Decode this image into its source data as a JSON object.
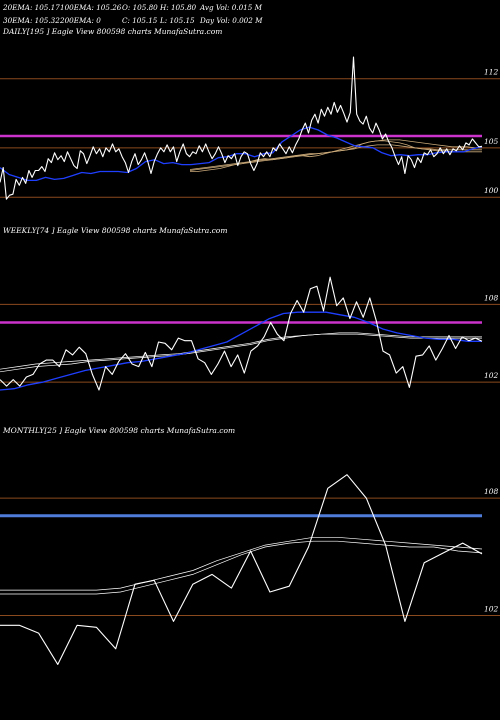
{
  "header": {
    "ema20": "20EMA: 105.17",
    "ema100": "100EMA: 105.26",
    "open": "O: 105.80",
    "high": "H: 105.80",
    "avg_vol": "Avg Vol: 0.015 M",
    "ema30": "30EMA: 105.32",
    "ema200": "200EMA: 0",
    "close": "C: 105.15",
    "low": "L: 105.15",
    "day_vol": "Day Vol: 0.002 M"
  },
  "colors": {
    "price": "#ffffff",
    "ema_blue": "#1f3fff",
    "band_magenta": "#cc33cc",
    "band_blue": "#4f7bd9",
    "grid_brown": "#8b4a1e",
    "ma_tan": "#c8a878"
  },
  "chart_data": [
    {
      "type": "line",
      "title": "DAILY[195 ] Eagle View 800598 charts MunafaSutra.com",
      "yticks": [
        112,
        105,
        100
      ],
      "ylim": [
        98.5,
        114.5
      ],
      "band_level": 106.2,
      "series": [
        {
          "values": [
            101.5,
            103,
            99.8,
            100.2,
            100.3,
            101.8,
            101.2,
            102,
            101.4,
            102.7,
            102,
            102.7,
            102.7,
            103.1,
            102.6,
            103.9,
            103.5,
            104.5,
            103.8,
            104.2,
            103.6,
            104.6,
            103.9,
            103.2,
            102.9,
            104.7,
            104.4,
            103.4,
            104.2,
            105.1,
            104.4,
            104.9,
            104.1,
            105,
            104.6,
            105.4,
            104.6,
            104.9,
            104.1,
            103.5,
            102.5,
            103.6,
            104.4,
            103.3,
            103.8,
            104.5,
            103.6,
            102.4,
            103.6,
            104.4,
            105,
            104.6,
            105.3,
            104.6,
            105.1,
            103.6,
            104.6,
            105.4,
            104.4,
            104.1,
            104.6,
            104.4,
            105.2,
            104.6,
            105.4,
            104.6,
            103.9,
            104.4,
            105.1,
            104.4,
            103.5,
            104.2,
            103.9,
            104.4,
            103.2,
            104.1,
            104.6,
            104.4,
            103.4,
            102.7,
            103.4,
            104.5,
            104.1,
            104.6,
            104.1,
            105,
            104.7,
            105.4,
            104.9,
            104.4,
            105.1,
            104.5,
            105.3,
            105.9,
            106.8,
            107.5,
            106.5,
            107.8,
            108.4,
            107.5,
            108.9,
            108.2,
            109.1,
            108.4,
            109.6,
            108.6,
            109.3,
            108.5,
            107.6,
            108.6,
            114.2,
            108.4,
            107.7,
            107.4,
            108.2,
            107,
            106.5,
            107.5,
            106.8,
            105.9,
            106.4,
            105.6,
            105,
            104.1,
            103.3,
            104.1,
            102.4,
            104.2,
            103.8,
            103,
            104,
            103.5,
            104.5,
            104.3,
            104.8,
            104.1,
            104.4,
            105,
            104.4,
            104.9,
            104.3,
            104.9,
            104.7,
            105.2,
            104.8,
            105.5,
            105.3,
            105.9,
            105.5,
            105.1,
            105.15
          ]
        },
        {
          "values": [
            103,
            102.3,
            102,
            101.7,
            101.7,
            102,
            101.8,
            101.9,
            102.2,
            102.5,
            102.4,
            102.6,
            102.6,
            102.6,
            102.5,
            102.9,
            103.6,
            103.8,
            103.4,
            103.5,
            103.3,
            103.3,
            103.4,
            103.5,
            104,
            104.1,
            104.4,
            104.4,
            104.1,
            104.4,
            104.5,
            105.6,
            106.2,
            106.8,
            107.1,
            106.8,
            106.3,
            106,
            105.6,
            105.2,
            105.1,
            105,
            104.5,
            104.2,
            104.3,
            104.2,
            104.3,
            104.3,
            104.5,
            104.6,
            104.6,
            104.6,
            104.9,
            105.1
          ]
        },
        {
          "values": [
            102.6,
            102.6,
            102.7,
            102.8,
            102.9,
            103.1,
            103.3,
            103.4,
            103.6,
            103.8,
            103.9,
            103.8,
            103.9,
            104,
            104.2,
            104.2,
            104.1,
            104.2,
            104.4,
            104.6,
            104.7,
            104.8,
            105,
            105.4,
            105.6,
            105.7,
            105.7,
            105.6,
            105.5,
            105.3,
            105,
            104.9,
            104.8,
            104.7,
            104.7,
            104.6,
            104.6,
            104.6,
            104.6,
            104.6
          ]
        },
        {
          "values": [
            102.8,
            102.9,
            103,
            103.1,
            103.2,
            103.3,
            103.4,
            103.5,
            103.6,
            103.7,
            103.8,
            103.9,
            104,
            104.1,
            104.2,
            104.3,
            104.4,
            104.4,
            104.5,
            104.6,
            104.7,
            104.8,
            104.9,
            105.1,
            105.2,
            105.3,
            105.3,
            105.3,
            105.2,
            105.1,
            105,
            104.9,
            104.9,
            104.8,
            104.8,
            104.8,
            104.8,
            104.8,
            104.8,
            104.8
          ]
        },
        {
          "values": [
            102.7,
            102.8,
            102.9,
            103,
            103.1,
            103.2,
            103.3,
            103.4,
            103.5,
            103.6,
            103.7,
            103.8,
            103.9,
            104,
            104.1,
            104.2,
            104.3,
            104.4,
            104.5,
            104.6,
            104.8,
            105,
            105.2,
            105.4,
            105.6,
            105.7,
            105.8,
            105.8,
            105.8,
            105.7,
            105.6,
            105.5,
            105.4,
            105.3,
            105.2,
            105.1,
            105.1,
            105.1,
            105,
            105
          ]
        }
      ]
    },
    {
      "type": "line",
      "title": "WEEKLY[74 ] Eagle View 800598 charts MunafaSutra.com",
      "yticks": [
        108,
        102
      ],
      "ylim": [
        99.7,
        111.5
      ],
      "band_level": 106.6,
      "series": [
        {
          "values": [
            102.2,
            101.7,
            102.2,
            101.7,
            102.4,
            102.6,
            103.4,
            103.7,
            103.7,
            103.2,
            104.5,
            104.1,
            104.7,
            104.2,
            102.6,
            101.4,
            103.2,
            102.6,
            103.6,
            104.2,
            103.4,
            103.2,
            104.3,
            103.2,
            105.1,
            105,
            104.5,
            105.4,
            105.2,
            105.2,
            103.8,
            103.5,
            102.6,
            103.4,
            104.4,
            103.2,
            104.1,
            102.7,
            104.4,
            104.8,
            105.5,
            106.6,
            105.7,
            105.2,
            107.3,
            108.3,
            107.4,
            109.2,
            109.4,
            107.5,
            110.1,
            107.9,
            108.5,
            106.9,
            108.2,
            107,
            108.5,
            106.7,
            104.4,
            104.1,
            102.7,
            103.2,
            101.6,
            104,
            104.1,
            104.8,
            103.7,
            104.6,
            105.6,
            104.6,
            105.5,
            105.2,
            105.4,
            105.15
          ]
        },
        {
          "values": [
            101.4,
            101.5,
            101.8,
            102,
            102.3,
            102.6,
            102.9,
            103.1,
            103.3,
            103.5,
            103.6,
            103.8,
            104,
            104.2,
            104.5,
            104.8,
            105.1,
            105.7,
            106.3,
            106.9,
            107.3,
            107.4,
            107.4,
            107.4,
            107.2,
            107,
            106.6,
            106.1,
            105.8,
            105.6,
            105.4,
            105.3,
            105.3,
            105.15,
            105.15
          ]
        },
        {
          "values": [
            103,
            103.2,
            103.4,
            103.5,
            103.6,
            103.7,
            103.8,
            103.9,
            104,
            104.1,
            104.2,
            104.4,
            104.6,
            104.8,
            105,
            105.3,
            105.5,
            105.6,
            105.7,
            105.7,
            105.7,
            105.6,
            105.5,
            105.4,
            105.4,
            105.4,
            105.4,
            105.4
          ]
        },
        {
          "values": [
            102.8,
            103,
            103.2,
            103.3,
            103.4,
            103.6,
            103.7,
            103.8,
            103.9,
            104,
            104.1,
            104.3,
            104.5,
            104.7,
            104.9,
            105.2,
            105.4,
            105.6,
            105.7,
            105.8,
            105.8,
            105.7,
            105.6,
            105.5,
            105.5,
            105.5,
            105.5,
            105.5
          ]
        }
      ]
    },
    {
      "type": "line",
      "title": "MONTHLY[25 ] Eagle View 800598 charts MunafaSutra.com",
      "yticks": [
        108,
        102
      ],
      "ylim": [
        98.5,
        110
      ],
      "band_level": 107.1,
      "series": [
        {
          "values": [
            101.5,
            101.5,
            101.1,
            99.5,
            101.5,
            101.4,
            100.3,
            103.6,
            103.8,
            101.7,
            103.6,
            104.1,
            103.4,
            105.3,
            103.2,
            103.5,
            105.5,
            108.5,
            109.2,
            108,
            105.6,
            101.7,
            104.7,
            105.2,
            105.7,
            105.15
          ]
        },
        {
          "values": [
            103.1,
            103.1,
            103.1,
            103.1,
            103.1,
            103.2,
            103.5,
            103.8,
            104.1,
            104.6,
            105.1,
            105.5,
            105.7,
            105.8,
            105.8,
            105.7,
            105.6,
            105.5,
            105.5,
            105.3,
            105.2
          ]
        },
        {
          "values": [
            103.3,
            103.3,
            103.3,
            103.3,
            103.3,
            103.4,
            103.7,
            104,
            104.3,
            104.8,
            105.2,
            105.6,
            105.8,
            106,
            106,
            105.9,
            105.8,
            105.7,
            105.6,
            105.5,
            105.4
          ]
        }
      ]
    }
  ]
}
